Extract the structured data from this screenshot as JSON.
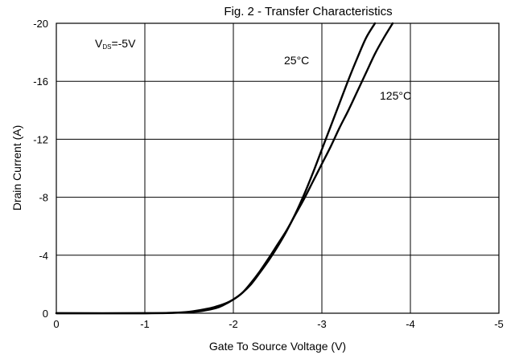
{
  "chart_data": {
    "type": "line",
    "title": "Fig. 2 - Transfer Characteristics",
    "xlabel": "Gate To Source Voltage (V)",
    "ylabel": "Drain Current (A)",
    "xlim": [
      0,
      -5
    ],
    "ylim": [
      0,
      -20
    ],
    "x_ticks": [
      "0",
      "-1",
      "-2",
      "-3",
      "-4",
      "-5"
    ],
    "y_ticks": [
      "0",
      "-4",
      "-8",
      "-12",
      "-16",
      "-20"
    ],
    "grid": true,
    "annotation": {
      "vds_main": "V",
      "vds_sub": "DS",
      "vds_value": "=-5V"
    },
    "series": [
      {
        "name": "25°C",
        "x": [
          0,
          -1.0,
          -1.3,
          -1.6,
          -1.8,
          -1.9,
          -2.0,
          -2.1,
          -2.2,
          -2.3,
          -2.4,
          -2.5,
          -2.6,
          -2.7,
          -2.8,
          -2.9,
          -3.0,
          -3.1,
          -3.2,
          -3.3,
          -3.4,
          -3.5,
          -3.6
        ],
        "y": [
          0,
          0,
          -0.02,
          -0.12,
          -0.35,
          -0.6,
          -0.95,
          -1.4,
          -2.0,
          -2.8,
          -3.65,
          -4.6,
          -5.65,
          -6.85,
          -8.2,
          -9.7,
          -11.3,
          -12.9,
          -14.5,
          -16.1,
          -17.6,
          -19.0,
          -20.0
        ]
      },
      {
        "name": "125°C",
        "x": [
          0,
          -1.0,
          -1.3,
          -1.5,
          -1.7,
          -1.8,
          -1.9,
          -2.0,
          -2.1,
          -2.2,
          -2.3,
          -2.4,
          -2.5,
          -2.6,
          -2.7,
          -2.8,
          -2.9,
          -3.0,
          -3.1,
          -3.2,
          -3.3,
          -3.4,
          -3.5,
          -3.6,
          -3.7,
          -3.8
        ],
        "y": [
          0,
          0,
          -0.03,
          -0.1,
          -0.3,
          -0.45,
          -0.65,
          -0.95,
          -1.4,
          -2.1,
          -2.9,
          -3.8,
          -4.75,
          -5.7,
          -6.8,
          -7.9,
          -9.1,
          -10.3,
          -11.5,
          -12.8,
          -14.0,
          -15.3,
          -16.6,
          -17.9,
          -19.0,
          -20.0
        ]
      }
    ]
  }
}
